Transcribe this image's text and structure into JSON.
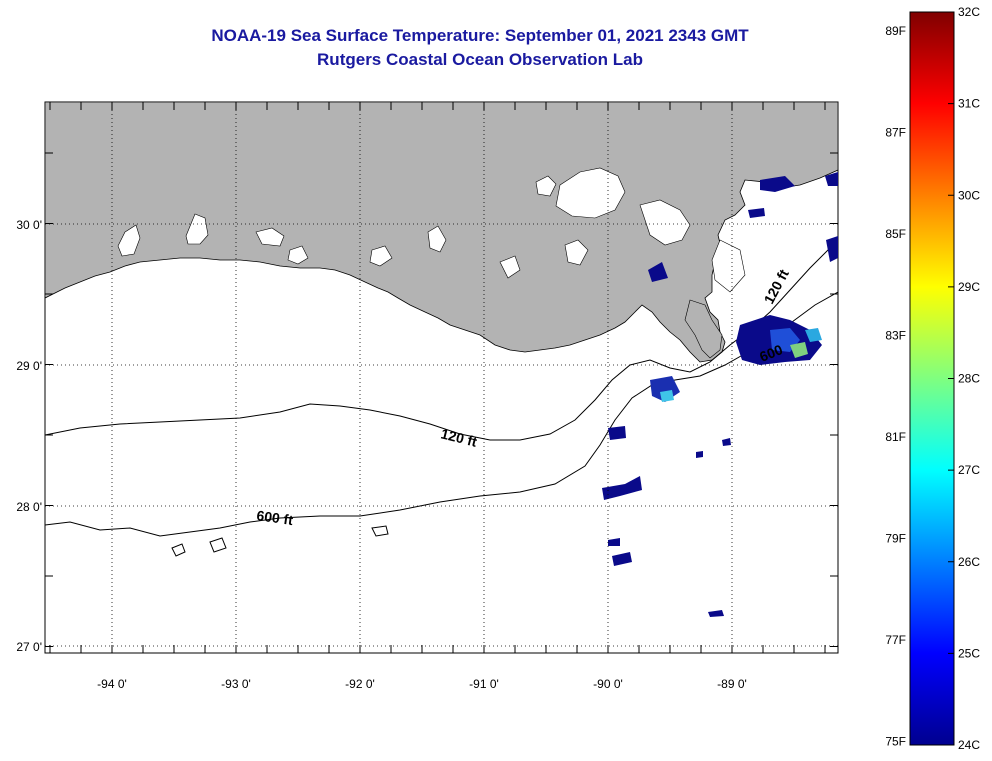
{
  "title": "NOAA-19 Sea Surface Temperature:  September 01, 2021 2343 GMT",
  "subtitle": "Rutgers Coastal Ocean Observation Lab",
  "map": {
    "lat_labels": [
      "30 0'",
      "29 0'",
      "28 0'",
      "27 0'"
    ],
    "lon_labels": [
      "-94 0'",
      "-93 0'",
      "-92 0'",
      "-91 0'",
      "-90 0'",
      "-89 0'"
    ],
    "contours": [
      {
        "label": "120 ft"
      },
      {
        "label": "600 ft"
      },
      {
        "label": "120 ft"
      },
      {
        "label": "600"
      }
    ],
    "colors": {
      "land": "#b3b3b3",
      "ocean": "#ffffff",
      "frame": "#000000"
    }
  },
  "colorbar": {
    "celsius": [
      "32C",
      "31C",
      "30C",
      "29C",
      "28C",
      "27C",
      "26C",
      "25C",
      "24C"
    ],
    "fahrenheit": [
      "89F",
      "87F",
      "85F",
      "83F",
      "81F",
      "79F",
      "77F",
      "75F"
    ],
    "range_c": [
      24,
      32
    ]
  }
}
